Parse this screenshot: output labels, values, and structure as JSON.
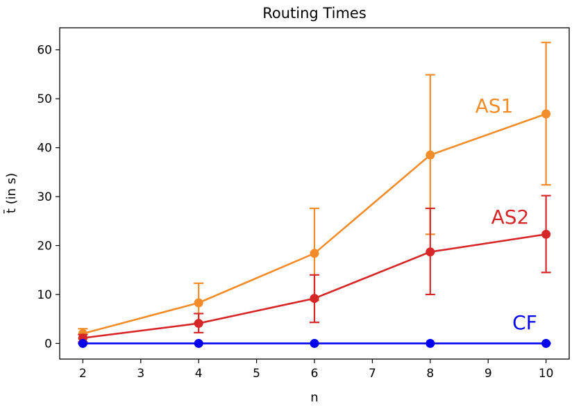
{
  "chart_data": {
    "type": "line",
    "title": "Routing Times",
    "xlabel": "n",
    "ylabel": "t̄ (in s)",
    "xlim": [
      1.6,
      10.4
    ],
    "ylim": [
      -3.2,
      64.5
    ],
    "x_ticks": [
      2,
      3,
      4,
      5,
      6,
      7,
      8,
      9,
      10
    ],
    "y_ticks": [
      0,
      10,
      20,
      30,
      40,
      50,
      60
    ],
    "grid": false,
    "legend": "none (series labeled inline)",
    "x": [
      2,
      4,
      6,
      8,
      10
    ],
    "series": [
      {
        "name": "AS1",
        "color": "#f28c28",
        "values": [
          2.0,
          8.3,
          18.4,
          38.5,
          46.9
        ],
        "err_low": [
          1.0,
          4.2,
          8.8,
          22.3,
          32.4
        ],
        "err_high": [
          3.0,
          12.3,
          27.6,
          54.9,
          61.5
        ]
      },
      {
        "name": "AS2",
        "color": "#d62728",
        "values": [
          1.1,
          4.1,
          9.2,
          18.7,
          22.3
        ],
        "err_low": [
          0.3,
          2.2,
          4.3,
          10.0,
          14.5
        ],
        "err_high": [
          1.8,
          6.1,
          14.0,
          27.6,
          30.2
        ]
      },
      {
        "name": "CF",
        "color": "#0000ee",
        "values": [
          0.0,
          0.0,
          0.0,
          0.0,
          0.0
        ],
        "err_low": [
          0.0,
          0.0,
          0.0,
          0.0,
          0.0
        ],
        "err_high": [
          0.0,
          0.0,
          0.0,
          0.0,
          0.0
        ]
      }
    ]
  }
}
